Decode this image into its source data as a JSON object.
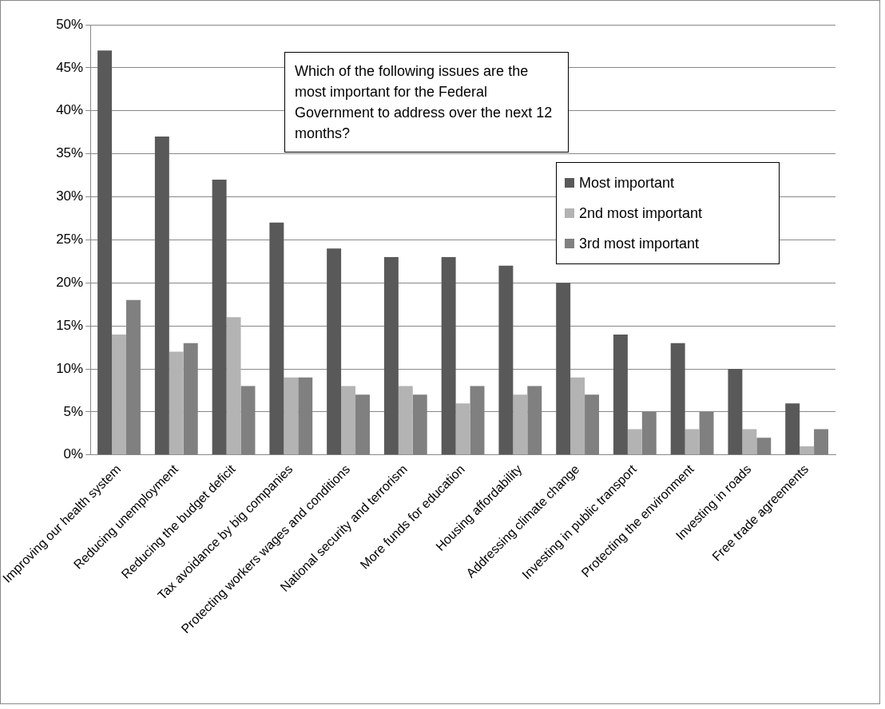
{
  "chart_data": {
    "type": "bar",
    "title": "Which of the following issues are the most important for the Federal Government to address over the next 12 months?",
    "categories": [
      "Improving our health system",
      "Reducing unemployment",
      "Reducing the budget deficit",
      "Tax avoidance by big companies",
      "Protecting workers wages and conditions",
      "National security and terrorism",
      "More funds for education",
      "Housing affordability",
      "Addressing climate change",
      "Investing in public transport",
      "Protecting the environment",
      "Investing in roads",
      "Free trade agreements"
    ],
    "series": [
      {
        "name": "Most important",
        "color": "#595959",
        "values": [
          47,
          37,
          32,
          27,
          24,
          23,
          23,
          22,
          20,
          14,
          13,
          10,
          6
        ]
      },
      {
        "name": "2nd most important",
        "color": "#b3b3b3",
        "values": [
          14,
          12,
          16,
          9,
          8,
          8,
          6,
          7,
          9,
          3,
          3,
          3,
          1
        ]
      },
      {
        "name": "3rd most important",
        "color": "#808080",
        "values": [
          18,
          13,
          8,
          9,
          7,
          7,
          8,
          8,
          7,
          5,
          5,
          2,
          3
        ]
      }
    ],
    "ylim": [
      0,
      50
    ],
    "yticks": [
      {
        "value": 0,
        "label": "0%"
      },
      {
        "value": 5,
        "label": "5%"
      },
      {
        "value": 10,
        "label": "10%"
      },
      {
        "value": 15,
        "label": "15%"
      },
      {
        "value": 20,
        "label": "20%"
      },
      {
        "value": 25,
        "label": "25%"
      },
      {
        "value": 30,
        "label": "30%"
      },
      {
        "value": 35,
        "label": "35%"
      },
      {
        "value": 40,
        "label": "40%"
      },
      {
        "value": 45,
        "label": "45%"
      },
      {
        "value": 50,
        "label": "50%"
      }
    ],
    "grid": "y",
    "legend": "top right"
  }
}
